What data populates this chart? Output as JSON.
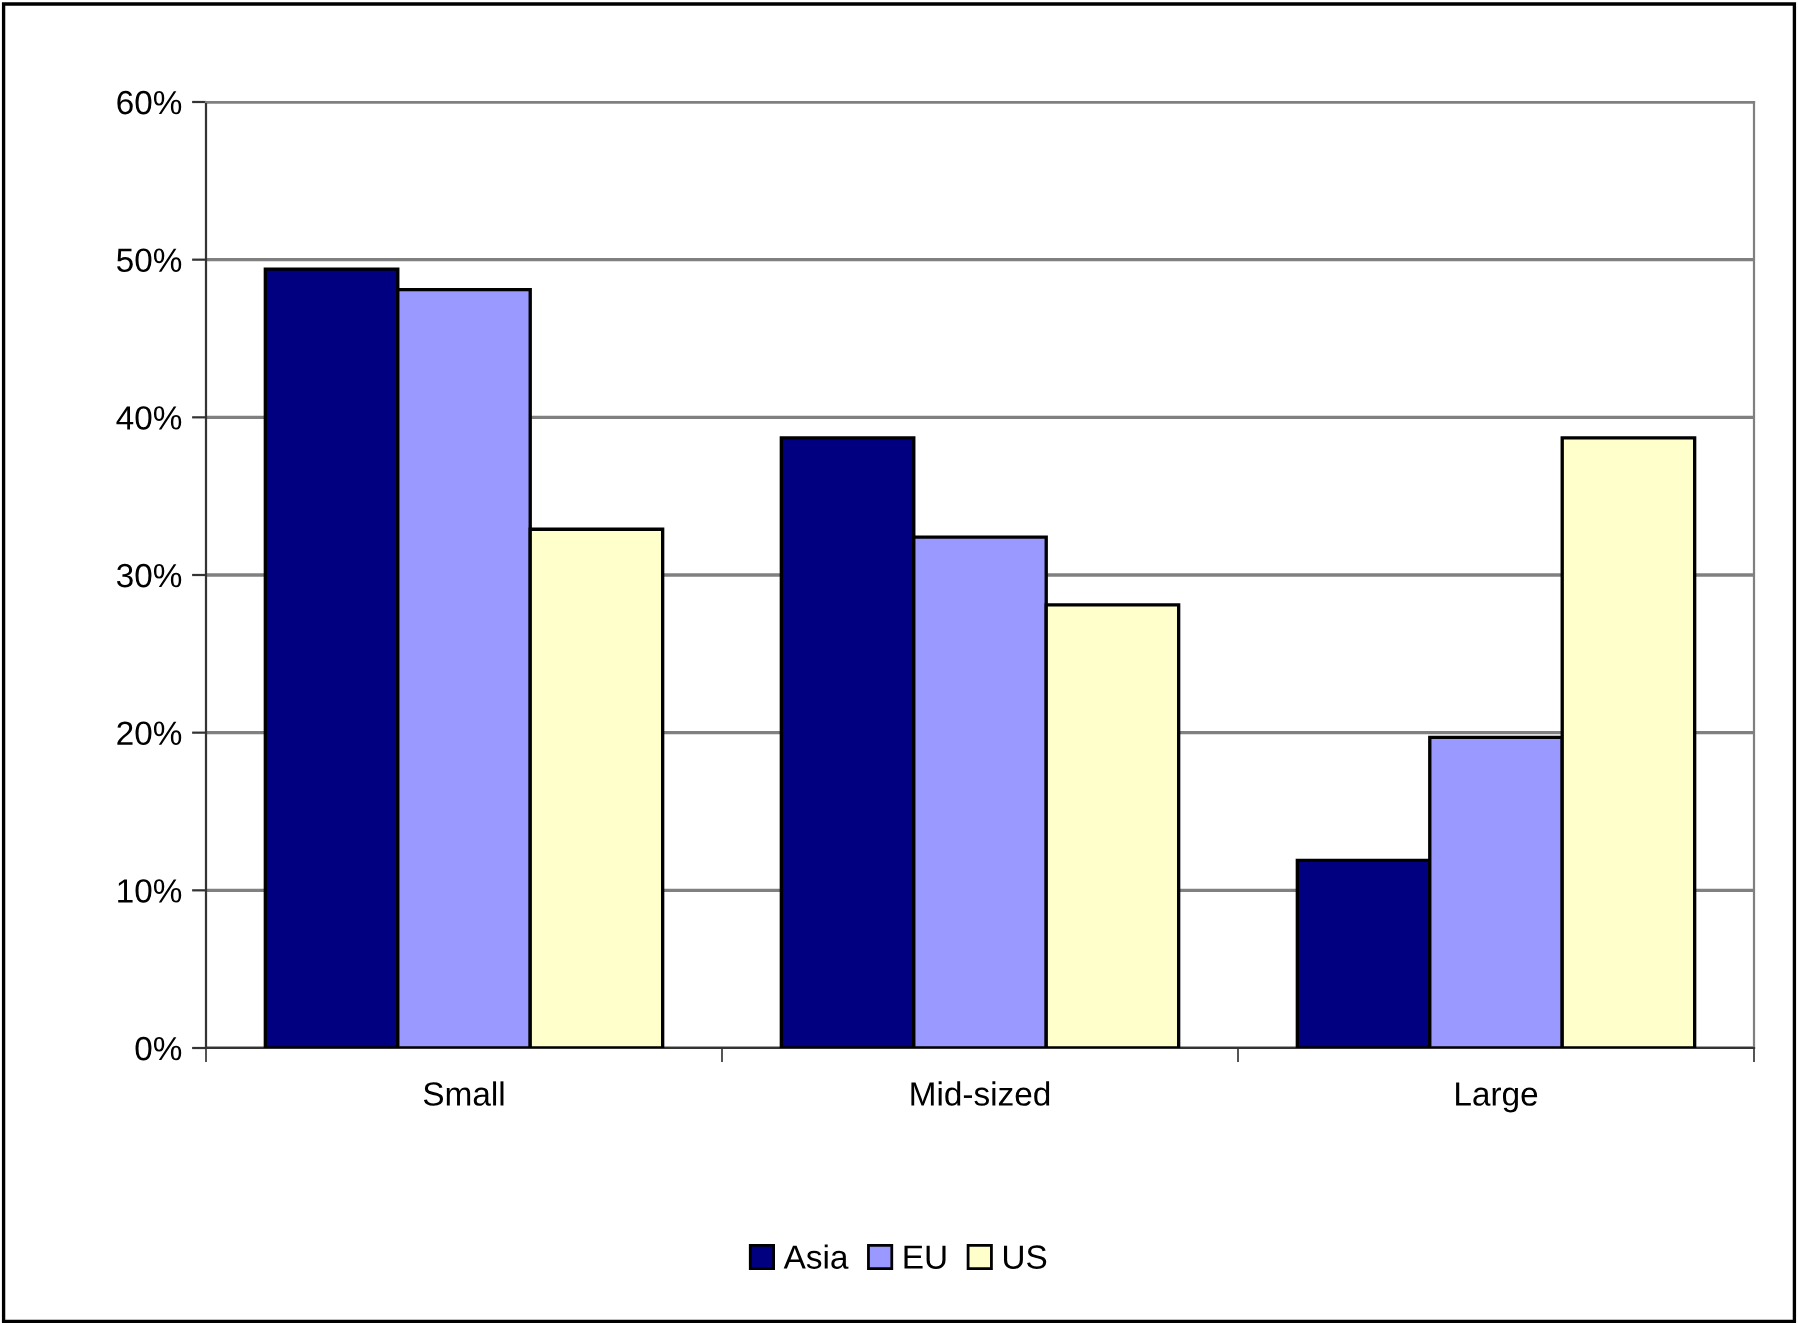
{
  "chart_data": {
    "type": "bar",
    "categories": [
      "Small",
      "Mid-sized",
      "Large"
    ],
    "series": [
      {
        "name": "Asia",
        "color": "#000080",
        "values": [
          49.4,
          38.7,
          11.9
        ]
      },
      {
        "name": "EU",
        "color": "#9999ff",
        "values": [
          48.1,
          32.4,
          19.7
        ]
      },
      {
        "name": "US",
        "color": "#ffffcc",
        "values": [
          32.9,
          28.1,
          38.7
        ]
      }
    ],
    "ylim": [
      0,
      60
    ],
    "yticks": [
      {
        "value": 0,
        "label": "0%"
      },
      {
        "value": 10,
        "label": "10%"
      },
      {
        "value": 20,
        "label": "20%"
      },
      {
        "value": 30,
        "label": "30%"
      },
      {
        "value": 40,
        "label": "40%"
      },
      {
        "value": 50,
        "label": "50%"
      },
      {
        "value": 60,
        "label": "60%"
      }
    ],
    "grid": "y",
    "legend": "bottom"
  }
}
